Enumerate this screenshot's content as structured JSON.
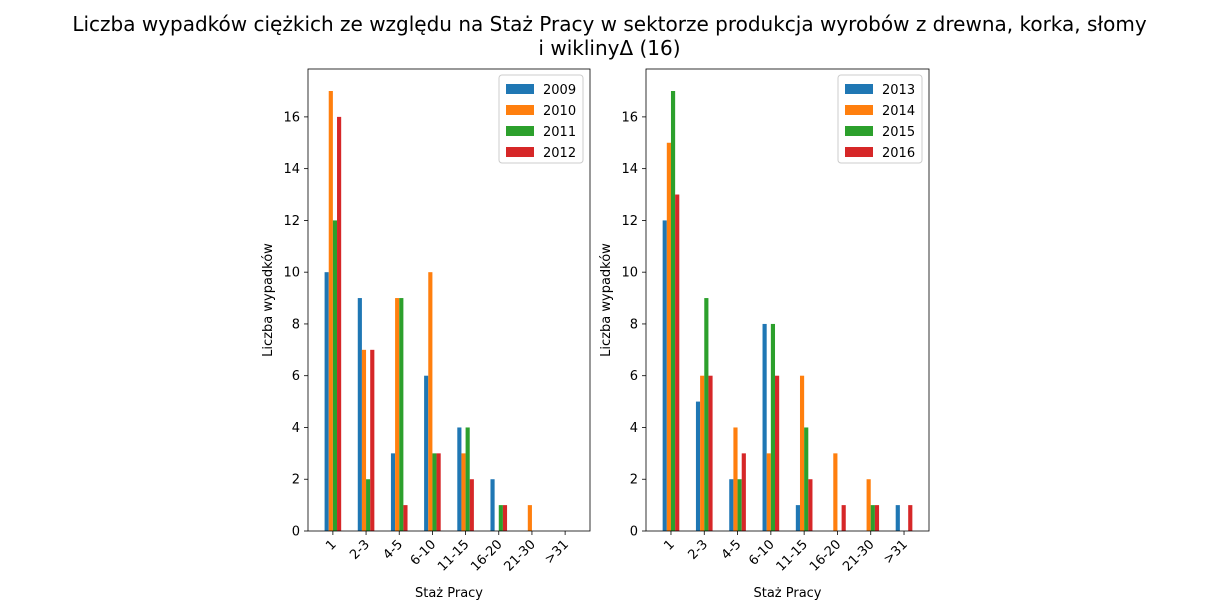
{
  "title_line1": "Liczba wypadków ciężkich ze względu na Staż Pracy w sektorze produkcja wyrobów z drewna, korka, słomy",
  "title_line2": "i wiklinyΔ (16)",
  "colors": [
    "#1f77b4",
    "#ff7f0e",
    "#2ca02c",
    "#d62728"
  ],
  "chart_data": [
    {
      "type": "bar",
      "xlabel": "Staż Pracy",
      "ylabel": "Liczba wypadków",
      "categories": [
        "1",
        "2-3",
        "4-5",
        "6-10",
        "11-15",
        "16-20",
        "21-30",
        ">31"
      ],
      "ylim": [
        0,
        17.85
      ],
      "yticks": [
        0,
        2,
        4,
        6,
        8,
        10,
        12,
        14,
        16
      ],
      "legend": "top-right",
      "series": [
        {
          "name": "2009",
          "values": [
            10,
            9,
            3,
            6,
            4,
            2,
            0,
            0
          ]
        },
        {
          "name": "2010",
          "values": [
            17,
            7,
            9,
            10,
            3,
            0,
            1,
            0
          ]
        },
        {
          "name": "2011",
          "values": [
            12,
            2,
            9,
            3,
            4,
            1,
            0,
            0
          ]
        },
        {
          "name": "2012",
          "values": [
            16,
            7,
            1,
            3,
            2,
            1,
            0,
            0
          ]
        }
      ]
    },
    {
      "type": "bar",
      "xlabel": "Staż Pracy",
      "ylabel": "Liczba wypadków",
      "categories": [
        "1",
        "2-3",
        "4-5",
        "6-10",
        "11-15",
        "16-20",
        "21-30",
        ">31"
      ],
      "ylim": [
        0,
        17.85
      ],
      "yticks": [
        0,
        2,
        4,
        6,
        8,
        10,
        12,
        14,
        16
      ],
      "legend": "top-right",
      "series": [
        {
          "name": "2013",
          "values": [
            12,
            5,
            2,
            8,
            1,
            0,
            0,
            1
          ]
        },
        {
          "name": "2014",
          "values": [
            15,
            6,
            4,
            3,
            6,
            3,
            2,
            0
          ]
        },
        {
          "name": "2015",
          "values": [
            17,
            9,
            2,
            8,
            4,
            0,
            1,
            0
          ]
        },
        {
          "name": "2016",
          "values": [
            13,
            6,
            3,
            6,
            2,
            1,
            1,
            1
          ]
        }
      ]
    }
  ]
}
